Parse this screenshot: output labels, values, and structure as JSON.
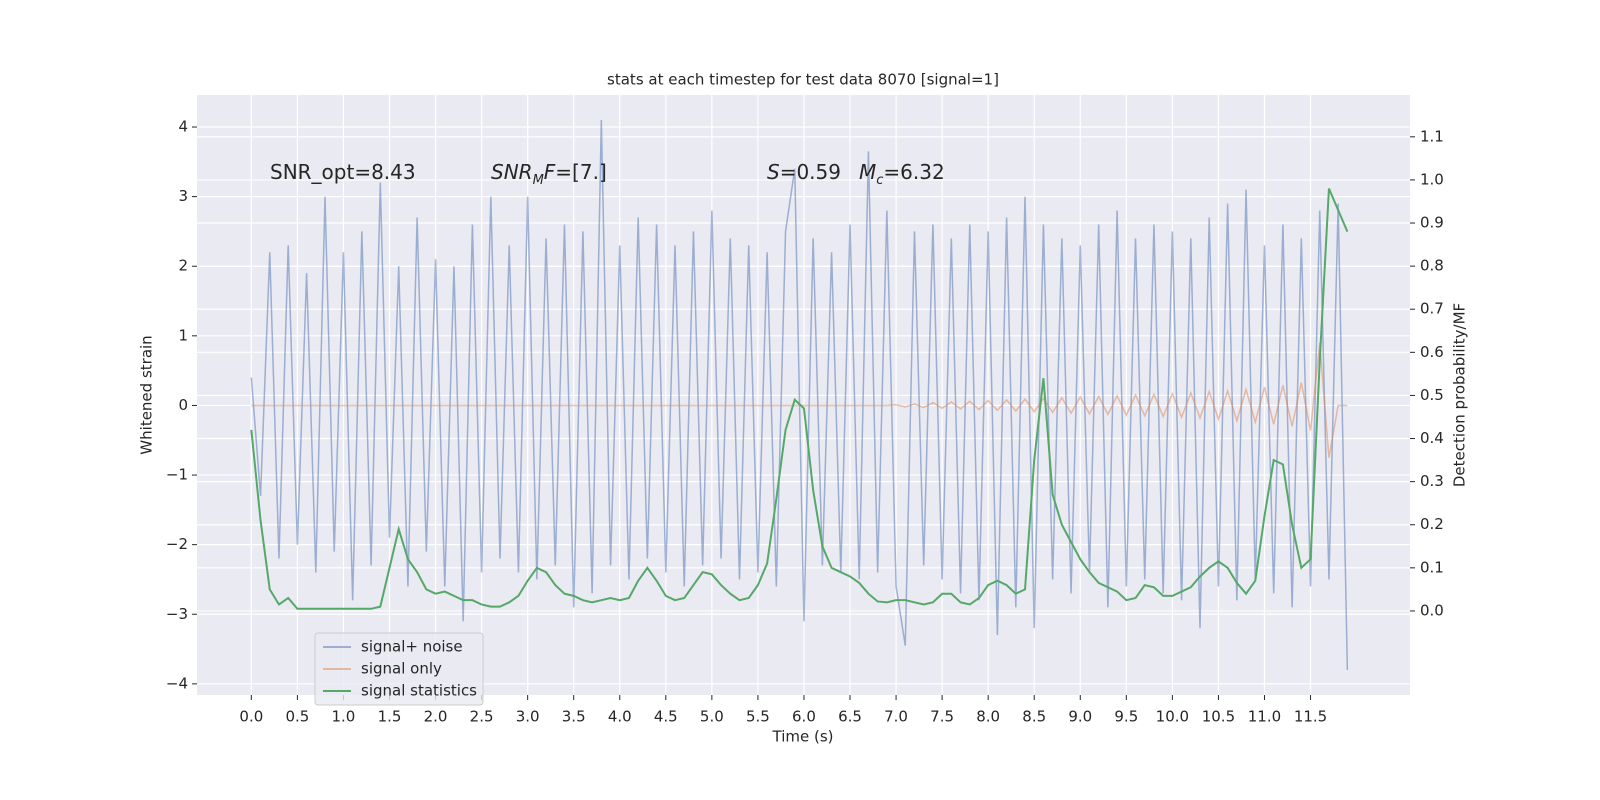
{
  "chart_data": {
    "type": "line",
    "title": "stats at each timestep for test data 8070 [signal=1]",
    "x_label": "Time (s)",
    "y_label": "Whitened strain",
    "y2_label": "Detection probability/MF",
    "annotations": [
      [
        {
          "text": "SNR_opt=8.43",
          "style": "normal"
        }
      ],
      [
        {
          "text": "SNR",
          "style": "italic"
        },
        {
          "text": "M",
          "style": "sub"
        },
        {
          "text": "F",
          "style": "italic"
        },
        {
          "text": "=[7.]",
          "style": "normal"
        }
      ],
      [
        {
          "text": "S",
          "style": "italic"
        },
        {
          "text": "=0.59",
          "style": "normal"
        }
      ],
      [
        {
          "text": "M",
          "style": "italic"
        },
        {
          "text": "c",
          "style": "sub"
        },
        {
          "text": "=6.32",
          "style": "normal"
        }
      ]
    ],
    "x": [
      0,
      0.1,
      0.2,
      0.3,
      0.4,
      0.5,
      0.6,
      0.7,
      0.8,
      0.9,
      1,
      1.1,
      1.2,
      1.3,
      1.4,
      1.5,
      1.6,
      1.7,
      1.8,
      1.9,
      2,
      2.1,
      2.2,
      2.3,
      2.4,
      2.5,
      2.6,
      2.7,
      2.8,
      2.9,
      3,
      3.1,
      3.2,
      3.3,
      3.4,
      3.5,
      3.6,
      3.7,
      3.8,
      3.9,
      4,
      4.1,
      4.2,
      4.3,
      4.4,
      4.5,
      4.6,
      4.7,
      4.8,
      4.9,
      5,
      5.1,
      5.2,
      5.3,
      5.4,
      5.5,
      5.6,
      5.7,
      5.8,
      5.9,
      6,
      6.1,
      6.2,
      6.3,
      6.4,
      6.5,
      6.6,
      6.7,
      6.8,
      6.9,
      7,
      7.1,
      7.2,
      7.3,
      7.4,
      7.5,
      7.6,
      7.7,
      7.8,
      7.9,
      8,
      8.1,
      8.2,
      8.3,
      8.4,
      8.5,
      8.6,
      8.7,
      8.8,
      8.9,
      9,
      9.1,
      9.2,
      9.3,
      9.4,
      9.5,
      9.6,
      9.7,
      9.8,
      9.9,
      10,
      10.1,
      10.2,
      10.3,
      10.4,
      10.5,
      10.6,
      10.7,
      10.8,
      10.9,
      11,
      11.1,
      11.2,
      11.3,
      11.4,
      11.5,
      11.6,
      11.7,
      11.8,
      11.9
    ],
    "series": [
      {
        "name": "signal+ noise",
        "color": "#4c72b0",
        "axis": "y",
        "values": [
          0.4,
          -1.3,
          2.2,
          -2.2,
          2.3,
          -2.0,
          1.9,
          -2.4,
          3.0,
          -2.1,
          2.2,
          -2.8,
          2.5,
          -2.3,
          3.2,
          -1.9,
          2.0,
          -2.6,
          2.7,
          -2.1,
          2.1,
          -2.6,
          2.0,
          -3.1,
          2.6,
          -2.4,
          3.0,
          -2.2,
          2.3,
          -2.4,
          3.0,
          -2.5,
          2.4,
          -2.3,
          2.6,
          -2.9,
          2.5,
          -2.7,
          4.1,
          -2.3,
          2.3,
          -2.5,
          2.7,
          -2.2,
          2.6,
          -2.4,
          2.3,
          -2.6,
          2.5,
          -2.3,
          2.8,
          -2.2,
          2.4,
          -2.5,
          2.3,
          -2.4,
          2.2,
          -2.6,
          2.5,
          3.4,
          -3.1,
          2.4,
          -2.3,
          2.2,
          -2.4,
          2.6,
          -2.5,
          3.65,
          -2.4,
          2.8,
          -2.6,
          -3.45,
          2.5,
          -2.3,
          2.6,
          -2.5,
          2.4,
          -2.7,
          2.6,
          -2.8,
          2.5,
          -3.3,
          2.7,
          -2.9,
          3.0,
          -3.2,
          2.6,
          -2.5,
          2.4,
          -2.7,
          2.3,
          -2.4,
          2.6,
          -2.9,
          2.8,
          -2.6,
          2.4,
          -2.5,
          2.6,
          -2.7,
          2.5,
          -2.8,
          2.4,
          -3.2,
          2.7,
          -2.6,
          2.9,
          -2.8,
          3.1,
          -2.5,
          2.3,
          -2.7,
          2.6,
          -2.9,
          2.4,
          -2.6,
          2.8,
          -2.5,
          2.9,
          -3.8
        ]
      },
      {
        "name": "signal only",
        "color": "#dd8452",
        "axis": "y",
        "values": [
          0,
          0,
          0,
          0,
          0,
          0,
          0,
          0,
          0,
          0,
          0,
          0,
          0,
          0,
          0,
          0,
          0,
          0,
          0,
          0,
          0,
          0,
          0,
          0,
          0,
          0,
          0,
          0,
          0,
          0,
          0,
          0,
          0,
          0,
          0,
          0,
          0,
          0,
          0,
          0,
          0,
          0,
          0,
          0,
          0,
          0,
          0,
          0,
          0,
          0,
          0,
          0,
          0,
          0,
          0,
          0,
          0,
          0,
          0,
          0,
          0,
          0,
          0,
          0,
          0,
          0,
          0,
          0,
          0,
          0,
          0.01,
          -0.02,
          0.02,
          -0.03,
          0.04,
          -0.04,
          0.05,
          -0.05,
          0.06,
          -0.06,
          0.07,
          -0.07,
          0.08,
          -0.08,
          0.09,
          -0.09,
          0.1,
          -0.1,
          0.11,
          -0.11,
          0.12,
          -0.12,
          0.13,
          -0.13,
          0.14,
          -0.14,
          0.15,
          -0.15,
          0.16,
          -0.16,
          0.17,
          -0.17,
          0.18,
          -0.18,
          0.2,
          -0.2,
          0.21,
          -0.22,
          0.23,
          -0.24,
          0.26,
          -0.27,
          0.29,
          -0.3,
          0.33,
          -0.36,
          0.9,
          -0.75,
          0,
          0
        ]
      },
      {
        "name": "signal statistics",
        "color": "#55a868",
        "axis": "y2",
        "values": [
          0.42,
          0.21,
          0.05,
          0.015,
          0.03,
          0.005,
          0.005,
          0.005,
          0.005,
          0.005,
          0.005,
          0.005,
          0.005,
          0.005,
          0.01,
          0.1,
          0.19,
          0.12,
          0.09,
          0.05,
          0.04,
          0.045,
          0.035,
          0.025,
          0.025,
          0.015,
          0.01,
          0.01,
          0.02,
          0.035,
          0.07,
          0.1,
          0.09,
          0.06,
          0.04,
          0.035,
          0.025,
          0.02,
          0.025,
          0.03,
          0.025,
          0.03,
          0.07,
          0.1,
          0.07,
          0.035,
          0.025,
          0.03,
          0.06,
          0.09,
          0.085,
          0.06,
          0.04,
          0.025,
          0.03,
          0.06,
          0.11,
          0.26,
          0.42,
          0.49,
          0.47,
          0.28,
          0.15,
          0.1,
          0.09,
          0.08,
          0.065,
          0.04,
          0.022,
          0.02,
          0.025,
          0.025,
          0.02,
          0.015,
          0.02,
          0.04,
          0.04,
          0.02,
          0.015,
          0.03,
          0.06,
          0.07,
          0.06,
          0.04,
          0.05,
          0.35,
          0.54,
          0.27,
          0.2,
          0.16,
          0.12,
          0.09,
          0.065,
          0.055,
          0.045,
          0.025,
          0.03,
          0.06,
          0.055,
          0.035,
          0.035,
          0.045,
          0.055,
          0.08,
          0.1,
          0.115,
          0.1,
          0.065,
          0.04,
          0.07,
          0.22,
          0.35,
          0.34,
          0.2,
          0.1,
          0.12,
          0.58,
          0.98,
          0.93,
          0.88
        ]
      }
    ],
    "xlim": [
      -0.59,
      12.58
    ],
    "xticks": [
      {
        "value": 0,
        "label": "0.0"
      },
      0.5,
      {
        "value": 1,
        "label": "1.0"
      },
      1.5,
      {
        "value": 2,
        "label": "2.0"
      },
      2.5,
      {
        "value": 3,
        "label": "3.0"
      },
      3.5,
      {
        "value": 4,
        "label": "4.0"
      },
      4.5,
      {
        "value": 5,
        "label": "5.0"
      },
      5.5,
      {
        "value": 6,
        "label": "6.0"
      },
      6.5,
      {
        "value": 7,
        "label": "7.0"
      },
      7.5,
      {
        "value": 8,
        "label": "8.0"
      },
      8.5,
      {
        "value": 9,
        "label": "9.0"
      },
      9.5,
      {
        "value": 10,
        "label": "10.0"
      },
      10.5,
      {
        "value": 11,
        "label": "11.0"
      },
      11.5
    ],
    "ylim": [
      -4.16,
      4.46
    ],
    "yticks": [
      {
        "value": -4,
        "label": "−4"
      },
      {
        "value": -3,
        "label": "−3"
      },
      {
        "value": -2,
        "label": "−2"
      },
      {
        "value": -1,
        "label": "−1"
      },
      0,
      1,
      2,
      3,
      4
    ],
    "y2lim": [
      -0.195,
      1.197
    ],
    "y2ticks": [
      {
        "value": 0,
        "label": "0.0"
      },
      0.1,
      0.2,
      0.3,
      0.4,
      0.5,
      0.6,
      0.7,
      0.8,
      0.9,
      {
        "value": 1,
        "label": "1.0"
      },
      1.1
    ],
    "grid": true,
    "legend": "lower left"
  }
}
